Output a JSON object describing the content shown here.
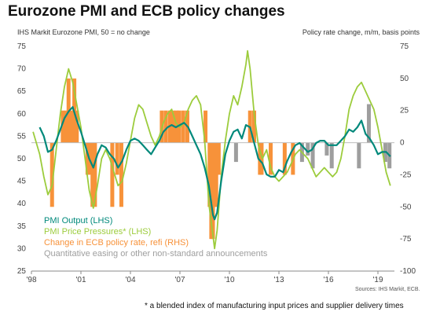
{
  "chart_data": {
    "type": "line",
    "title": "Eurozone PMI and ECB policy changes",
    "left_axis_note": "IHS Markit Eurozone PMI, 50 = no change",
    "right_axis_note": "Policy rate change, m/m, basis points",
    "x_ticks": [
      "'98",
      "'01",
      "'04",
      "'07",
      "'10",
      "'13",
      "'16",
      "'19"
    ],
    "left_axis": {
      "min": 25,
      "max": 75,
      "ticks": [
        "75",
        "70",
        "65",
        "60",
        "55",
        "50",
        "45",
        "40",
        "35",
        "30",
        "25"
      ]
    },
    "right_axis": {
      "min": -100,
      "max": 75,
      "ticks": [
        "75",
        "50",
        "25",
        "0",
        "-25",
        "-50",
        "-75",
        "-100"
      ]
    },
    "xlim": [
      1998,
      2020
    ],
    "series": [
      {
        "name": "PMI Output (LHS)",
        "color": "#00897b",
        "x": [
          1998.5,
          1998.75,
          1999.0,
          1999.25,
          1999.5,
          1999.75,
          2000.0,
          2000.25,
          2000.5,
          2000.75,
          2001.0,
          2001.25,
          2001.5,
          2001.75,
          2002.0,
          2002.25,
          2002.5,
          2002.75,
          2003.0,
          2003.25,
          2003.5,
          2003.75,
          2004.0,
          2004.25,
          2004.5,
          2004.75,
          2005.0,
          2005.25,
          2005.5,
          2005.75,
          2006.0,
          2006.25,
          2006.5,
          2006.75,
          2007.0,
          2007.25,
          2007.5,
          2007.75,
          2008.0,
          2008.25,
          2008.5,
          2008.75,
          2009.0,
          2009.1,
          2009.25,
          2009.5,
          2009.75,
          2010.0,
          2010.25,
          2010.5,
          2010.75,
          2011.0,
          2011.25,
          2011.5,
          2011.75,
          2012.0,
          2012.25,
          2012.5,
          2012.75,
          2013.0,
          2013.25,
          2013.5,
          2013.75,
          2014.0,
          2014.25,
          2014.5,
          2014.75,
          2015.0,
          2015.25,
          2015.5,
          2015.75,
          2016.0,
          2016.25,
          2016.5,
          2016.75,
          2017.0,
          2017.25,
          2017.5,
          2017.75,
          2018.0,
          2018.25,
          2018.5,
          2018.75,
          2019.0,
          2019.25,
          2019.5,
          2019.75
        ],
        "values": [
          57,
          55,
          51.5,
          52,
          54,
          56.5,
          59,
          60.5,
          61.5,
          58.5,
          56,
          53,
          50,
          48,
          51,
          53,
          52.5,
          51,
          50,
          48,
          49.5,
          52,
          54,
          54.5,
          54,
          53,
          52,
          51,
          52.5,
          54,
          56,
          57,
          57.5,
          57,
          57.5,
          58,
          57,
          55,
          53,
          51,
          48,
          44,
          37.5,
          36.5,
          38,
          45,
          51,
          54,
          56,
          56.5,
          54.5,
          57.5,
          57,
          53.5,
          50,
          49,
          46.5,
          46,
          46,
          47.5,
          47,
          49.5,
          51.5,
          53,
          53.5,
          52.5,
          51.5,
          52,
          53.5,
          54,
          54,
          53,
          53,
          53,
          54,
          55,
          56.5,
          56,
          57,
          58.5,
          55.5,
          54.5,
          53,
          51,
          51.5,
          51.5,
          50.5
        ]
      },
      {
        "name": "PMI Price Pressures* (LHS)",
        "color": "#9ccc3c",
        "x": [
          1998.1,
          1998.5,
          1998.75,
          1999.0,
          1999.25,
          1999.5,
          1999.75,
          2000.0,
          2000.25,
          2000.5,
          2000.75,
          2001.0,
          2001.25,
          2001.5,
          2001.75,
          2002.0,
          2002.25,
          2002.5,
          2002.75,
          2003.0,
          2003.25,
          2003.5,
          2003.75,
          2004.0,
          2004.25,
          2004.5,
          2004.75,
          2005.0,
          2005.25,
          2005.5,
          2005.75,
          2006.0,
          2006.25,
          2006.5,
          2006.75,
          2007.0,
          2007.25,
          2007.5,
          2007.75,
          2008.0,
          2008.25,
          2008.5,
          2008.75,
          2009.0,
          2009.1,
          2009.25,
          2009.5,
          2009.75,
          2010.0,
          2010.25,
          2010.5,
          2010.75,
          2011.0,
          2011.1,
          2011.25,
          2011.5,
          2011.75,
          2012.0,
          2012.25,
          2012.5,
          2012.75,
          2013.0,
          2013.25,
          2013.5,
          2013.75,
          2014.0,
          2014.25,
          2014.5,
          2014.75,
          2015.0,
          2015.25,
          2015.5,
          2015.75,
          2016.0,
          2016.25,
          2016.5,
          2016.75,
          2017.0,
          2017.25,
          2017.5,
          2017.75,
          2018.0,
          2018.25,
          2018.5,
          2018.75,
          2019.0,
          2019.25,
          2019.5,
          2019.75
        ],
        "values": [
          56,
          51,
          46,
          42,
          44,
          52,
          60,
          66,
          70,
          67,
          62,
          57,
          50,
          43,
          39,
          44,
          50,
          52,
          50,
          47,
          44,
          45,
          49,
          54,
          59,
          62,
          61,
          58,
          55,
          53,
          55,
          58,
          60,
          61,
          58,
          57,
          58,
          61,
          63,
          64,
          62,
          54,
          40,
          33,
          30,
          34,
          46,
          54,
          60,
          64,
          62,
          66,
          71,
          74,
          70,
          60,
          53,
          50,
          52,
          48,
          46,
          45,
          46,
          47,
          49,
          51,
          52,
          51,
          50,
          48,
          46,
          47,
          48,
          47,
          46,
          47,
          50,
          55,
          61,
          64,
          66,
          67,
          65,
          63,
          61,
          57,
          52,
          47,
          44
        ]
      }
    ],
    "policy_rate_changes": {
      "name": "Change in ECB policy rate, refi (RHS)",
      "color": "#f7923a",
      "x": [
        1999.25,
        1999.9,
        2000.1,
        2000.25,
        2000.45,
        2000.6,
        2000.75,
        2001.4,
        2001.6,
        2001.7,
        2001.85,
        2002.9,
        2003.2,
        2003.45,
        2005.9,
        2006.15,
        2006.4,
        2006.6,
        2006.8,
        2006.95,
        2007.2,
        2007.45,
        2008.55,
        2008.8,
        2008.9,
        2009.0,
        2009.1,
        2009.2,
        2009.35,
        2011.25,
        2011.5,
        2011.85,
        2011.95,
        2012.5,
        2013.35,
        2013.85
      ],
      "values": [
        -50,
        25,
        25,
        50,
        25,
        50,
        25,
        -25,
        -25,
        -50,
        -50,
        -50,
        -25,
        -50,
        25,
        25,
        25,
        25,
        25,
        25,
        25,
        25,
        25,
        -50,
        -75,
        -75,
        -50,
        -50,
        -25,
        25,
        25,
        -25,
        -25,
        -25,
        -25,
        -25
      ]
    },
    "non_standard_announcements": {
      "name": "Quantitative easing or other non-standard announcements",
      "color": "#9e9e9e",
      "x": [
        2010.4,
        2014.4,
        2014.75,
        2015.05,
        2015.9,
        2016.2,
        2017.85,
        2018.45,
        2019.45,
        2019.7
      ],
      "values": [
        -15,
        -15,
        -10,
        -20,
        -10,
        -20,
        -20,
        30,
        -15,
        -20
      ]
    },
    "source": "Sources: IHS Markit, ECB.",
    "footnote": "* a blended index of manufacturing input prices and supplier delivery times"
  }
}
